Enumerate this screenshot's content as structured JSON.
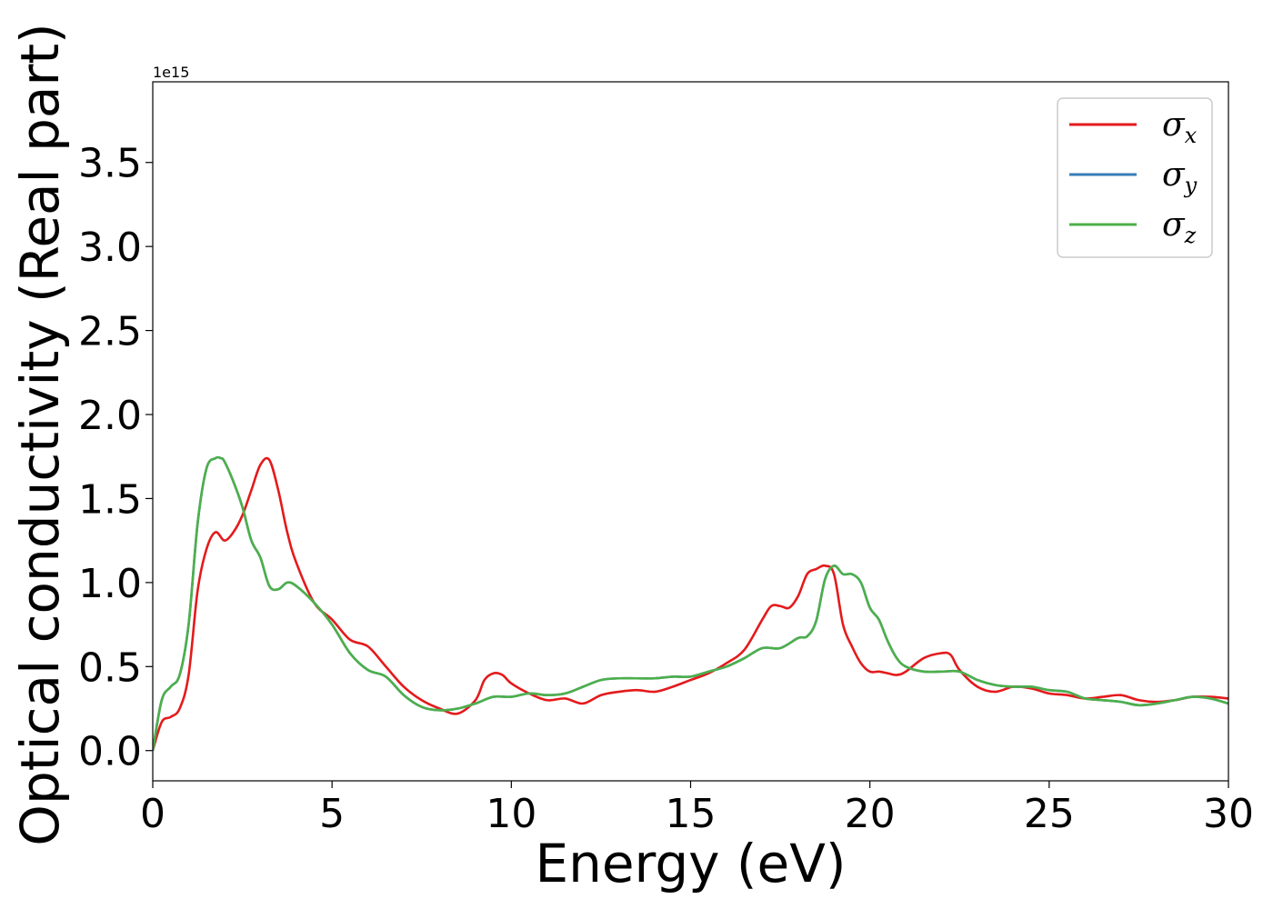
{
  "chart_data": {
    "type": "line",
    "title": "",
    "xlabel": "Energy (eV)",
    "ylabel": "Optical conductivity (Real part)",
    "y_offset_label": "1e15",
    "xlim": [
      0,
      30
    ],
    "ylim": [
      -0.18,
      3.98
    ],
    "x_ticks": [
      0,
      5,
      10,
      15,
      20,
      25,
      30
    ],
    "x_tick_labels": [
      "0",
      "5",
      "10",
      "15",
      "20",
      "25",
      "30"
    ],
    "y_ticks": [
      0.0,
      0.5,
      1.0,
      1.5,
      2.0,
      2.5,
      3.0,
      3.5
    ],
    "y_tick_labels": [
      "0.0",
      "0.5",
      "1.0",
      "1.5",
      "2.0",
      "2.5",
      "3.0",
      "3.5"
    ],
    "grid": false,
    "legend_position": "top-right",
    "series": [
      {
        "name": "σx",
        "legend_base": "σ",
        "legend_sub": "x",
        "color": "#e41a1c",
        "x": [
          0,
          0.25,
          0.5,
          0.75,
          1.0,
          1.25,
          1.5,
          1.75,
          2.0,
          2.25,
          2.5,
          2.75,
          3.0,
          3.25,
          3.5,
          3.75,
          4.0,
          4.5,
          5.0,
          5.5,
          6.0,
          6.5,
          7.0,
          7.5,
          8.0,
          8.5,
          9.0,
          9.25,
          9.5,
          9.75,
          10.0,
          10.5,
          11.0,
          11.5,
          12.0,
          12.5,
          13.0,
          13.5,
          14.0,
          14.5,
          15.0,
          15.5,
          16.0,
          16.5,
          17.0,
          17.25,
          17.5,
          17.75,
          18.0,
          18.25,
          18.5,
          18.75,
          19.0,
          19.25,
          19.5,
          19.75,
          20.0,
          20.25,
          20.5,
          20.75,
          21.0,
          21.5,
          22.0,
          22.25,
          22.5,
          23.0,
          23.5,
          24.0,
          24.5,
          25.0,
          25.5,
          26.0,
          26.5,
          27.0,
          27.5,
          28.0,
          28.5,
          29.0,
          29.5,
          30.0
        ],
        "values": [
          0.0,
          0.17,
          0.2,
          0.25,
          0.45,
          0.95,
          1.2,
          1.3,
          1.25,
          1.3,
          1.4,
          1.55,
          1.7,
          1.73,
          1.55,
          1.3,
          1.12,
          0.88,
          0.78,
          0.66,
          0.62,
          0.5,
          0.38,
          0.3,
          0.25,
          0.22,
          0.3,
          0.42,
          0.46,
          0.45,
          0.4,
          0.34,
          0.3,
          0.31,
          0.28,
          0.33,
          0.35,
          0.36,
          0.35,
          0.38,
          0.42,
          0.46,
          0.52,
          0.6,
          0.78,
          0.86,
          0.86,
          0.85,
          0.92,
          1.05,
          1.08,
          1.1,
          1.05,
          0.75,
          0.62,
          0.52,
          0.47,
          0.47,
          0.46,
          0.45,
          0.47,
          0.55,
          0.58,
          0.57,
          0.48,
          0.38,
          0.35,
          0.38,
          0.37,
          0.34,
          0.33,
          0.31,
          0.32,
          0.33,
          0.3,
          0.29,
          0.3,
          0.32,
          0.32,
          0.31
        ]
      },
      {
        "name": "σy",
        "legend_base": "σ",
        "legend_sub": "y",
        "color": "#377eb8",
        "x": [
          0,
          0.25,
          0.5,
          0.75,
          1.0,
          1.25,
          1.5,
          1.75,
          1.9,
          2.0,
          2.25,
          2.5,
          2.75,
          3.0,
          3.25,
          3.5,
          3.75,
          4.0,
          4.5,
          5.0,
          5.5,
          6.0,
          6.5,
          7.0,
          7.5,
          8.0,
          8.5,
          9.0,
          9.5,
          10.0,
          10.5,
          11.0,
          11.5,
          12.0,
          12.5,
          13.0,
          13.5,
          14.0,
          14.5,
          15.0,
          15.5,
          16.0,
          16.5,
          17.0,
          17.5,
          18.0,
          18.25,
          18.5,
          18.75,
          19.0,
          19.25,
          19.5,
          19.75,
          20.0,
          20.25,
          20.5,
          20.75,
          21.0,
          21.5,
          22.0,
          22.5,
          23.0,
          23.5,
          24.0,
          24.5,
          25.0,
          25.5,
          26.0,
          26.5,
          27.0,
          27.5,
          28.0,
          28.5,
          29.0,
          29.5,
          30.0
        ],
        "values": [
          0.0,
          0.3,
          0.38,
          0.45,
          0.75,
          1.35,
          1.68,
          1.74,
          1.74,
          1.72,
          1.6,
          1.45,
          1.25,
          1.15,
          0.98,
          0.96,
          1.0,
          0.98,
          0.88,
          0.75,
          0.58,
          0.48,
          0.44,
          0.33,
          0.26,
          0.24,
          0.25,
          0.28,
          0.32,
          0.32,
          0.34,
          0.33,
          0.34,
          0.38,
          0.42,
          0.43,
          0.43,
          0.43,
          0.44,
          0.44,
          0.47,
          0.5,
          0.55,
          0.61,
          0.61,
          0.67,
          0.68,
          0.77,
          1.02,
          1.1,
          1.05,
          1.05,
          1.0,
          0.85,
          0.78,
          0.65,
          0.55,
          0.5,
          0.47,
          0.47,
          0.47,
          0.42,
          0.39,
          0.38,
          0.38,
          0.36,
          0.35,
          0.31,
          0.3,
          0.29,
          0.27,
          0.28,
          0.3,
          0.32,
          0.31,
          0.28
        ]
      },
      {
        "name": "σz",
        "legend_base": "σ",
        "legend_sub": "z",
        "color": "#4daf4a",
        "x": [
          0,
          0.25,
          0.5,
          0.75,
          1.0,
          1.25,
          1.5,
          1.75,
          1.9,
          2.0,
          2.25,
          2.5,
          2.75,
          3.0,
          3.25,
          3.5,
          3.75,
          4.0,
          4.5,
          5.0,
          5.5,
          6.0,
          6.5,
          7.0,
          7.5,
          8.0,
          8.5,
          9.0,
          9.5,
          10.0,
          10.5,
          11.0,
          11.5,
          12.0,
          12.5,
          13.0,
          13.5,
          14.0,
          14.5,
          15.0,
          15.5,
          16.0,
          16.5,
          17.0,
          17.5,
          18.0,
          18.25,
          18.5,
          18.75,
          19.0,
          19.25,
          19.5,
          19.75,
          20.0,
          20.25,
          20.5,
          20.75,
          21.0,
          21.5,
          22.0,
          22.5,
          23.0,
          23.5,
          24.0,
          24.5,
          25.0,
          25.5,
          26.0,
          26.5,
          27.0,
          27.5,
          28.0,
          28.5,
          29.0,
          29.5,
          30.0
        ],
        "values": [
          0.0,
          0.3,
          0.38,
          0.45,
          0.75,
          1.35,
          1.68,
          1.74,
          1.74,
          1.72,
          1.6,
          1.45,
          1.25,
          1.15,
          0.98,
          0.96,
          1.0,
          0.98,
          0.88,
          0.75,
          0.58,
          0.48,
          0.44,
          0.33,
          0.26,
          0.24,
          0.25,
          0.28,
          0.32,
          0.32,
          0.34,
          0.33,
          0.34,
          0.38,
          0.42,
          0.43,
          0.43,
          0.43,
          0.44,
          0.44,
          0.47,
          0.5,
          0.55,
          0.61,
          0.61,
          0.67,
          0.68,
          0.77,
          1.02,
          1.1,
          1.05,
          1.05,
          1.0,
          0.85,
          0.78,
          0.65,
          0.55,
          0.5,
          0.47,
          0.47,
          0.47,
          0.42,
          0.39,
          0.38,
          0.38,
          0.36,
          0.35,
          0.31,
          0.3,
          0.29,
          0.27,
          0.28,
          0.3,
          0.32,
          0.31,
          0.28
        ]
      }
    ]
  }
}
